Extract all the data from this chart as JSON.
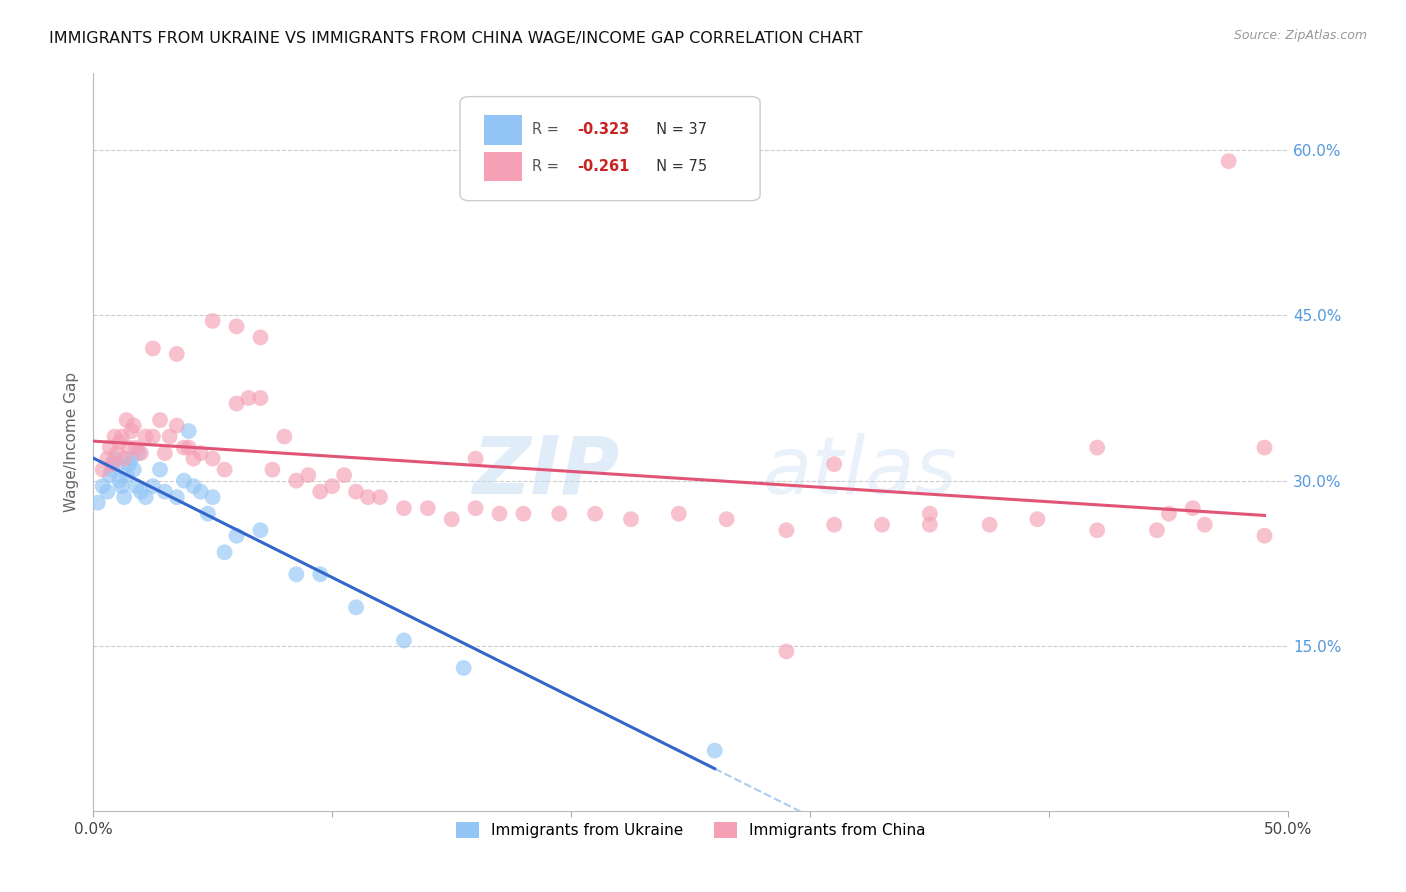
{
  "title": "IMMIGRANTS FROM UKRAINE VS IMMIGRANTS FROM CHINA WAGE/INCOME GAP CORRELATION CHART",
  "source": "Source: ZipAtlas.com",
  "ylabel": "Wage/Income Gap",
  "y_ticks_right": [
    0.15,
    0.3,
    0.45,
    0.6
  ],
  "y_tick_labels_right": [
    "15.0%",
    "30.0%",
    "45.0%",
    "60.0%"
  ],
  "xlim": [
    0.0,
    0.5
  ],
  "ylim": [
    0.0,
    0.67
  ],
  "ukraine_color": "#92c5f5",
  "china_color": "#f5a0b5",
  "ukraine_line_color": "#3366cc",
  "china_line_color": "#e05575",
  "dashed_line_color": "#aaccee",
  "ukraine_scatter_x": [
    0.002,
    0.004,
    0.006,
    0.007,
    0.008,
    0.009,
    0.01,
    0.011,
    0.012,
    0.013,
    0.014,
    0.015,
    0.016,
    0.017,
    0.018,
    0.019,
    0.02,
    0.022,
    0.025,
    0.028,
    0.03,
    0.035,
    0.038,
    0.04,
    0.042,
    0.045,
    0.048,
    0.05,
    0.055,
    0.06,
    0.07,
    0.085,
    0.095,
    0.11,
    0.13,
    0.155,
    0.26
  ],
  "ukraine_scatter_y": [
    0.28,
    0.295,
    0.29,
    0.305,
    0.31,
    0.32,
    0.315,
    0.3,
    0.295,
    0.285,
    0.305,
    0.315,
    0.32,
    0.31,
    0.295,
    0.325,
    0.29,
    0.285,
    0.295,
    0.31,
    0.29,
    0.285,
    0.3,
    0.345,
    0.295,
    0.29,
    0.27,
    0.285,
    0.235,
    0.25,
    0.255,
    0.215,
    0.215,
    0.185,
    0.155,
    0.13,
    0.055
  ],
  "china_scatter_x": [
    0.004,
    0.006,
    0.007,
    0.008,
    0.009,
    0.01,
    0.011,
    0.012,
    0.013,
    0.014,
    0.015,
    0.016,
    0.017,
    0.018,
    0.02,
    0.022,
    0.025,
    0.028,
    0.03,
    0.032,
    0.035,
    0.038,
    0.04,
    0.042,
    0.045,
    0.05,
    0.055,
    0.06,
    0.065,
    0.07,
    0.075,
    0.08,
    0.085,
    0.09,
    0.095,
    0.1,
    0.105,
    0.11,
    0.115,
    0.12,
    0.13,
    0.14,
    0.15,
    0.16,
    0.17,
    0.18,
    0.195,
    0.21,
    0.225,
    0.245,
    0.265,
    0.29,
    0.31,
    0.33,
    0.35,
    0.375,
    0.395,
    0.42,
    0.445,
    0.465,
    0.49,
    0.31,
    0.35,
    0.42,
    0.46,
    0.49,
    0.05,
    0.06,
    0.07,
    0.025,
    0.035,
    0.16,
    0.29,
    0.45,
    0.475
  ],
  "china_scatter_y": [
    0.31,
    0.32,
    0.33,
    0.315,
    0.34,
    0.325,
    0.335,
    0.34,
    0.32,
    0.355,
    0.33,
    0.345,
    0.35,
    0.33,
    0.325,
    0.34,
    0.34,
    0.355,
    0.325,
    0.34,
    0.35,
    0.33,
    0.33,
    0.32,
    0.325,
    0.32,
    0.31,
    0.37,
    0.375,
    0.375,
    0.31,
    0.34,
    0.3,
    0.305,
    0.29,
    0.295,
    0.305,
    0.29,
    0.285,
    0.285,
    0.275,
    0.275,
    0.265,
    0.275,
    0.27,
    0.27,
    0.27,
    0.27,
    0.265,
    0.27,
    0.265,
    0.255,
    0.26,
    0.26,
    0.26,
    0.26,
    0.265,
    0.255,
    0.255,
    0.26,
    0.25,
    0.315,
    0.27,
    0.33,
    0.275,
    0.33,
    0.445,
    0.44,
    0.43,
    0.42,
    0.415,
    0.32,
    0.145,
    0.27,
    0.59
  ],
  "legend_ukraine_text": "R = -0.323   N = 37",
  "legend_china_text": "R = -0.261   N = 75"
}
